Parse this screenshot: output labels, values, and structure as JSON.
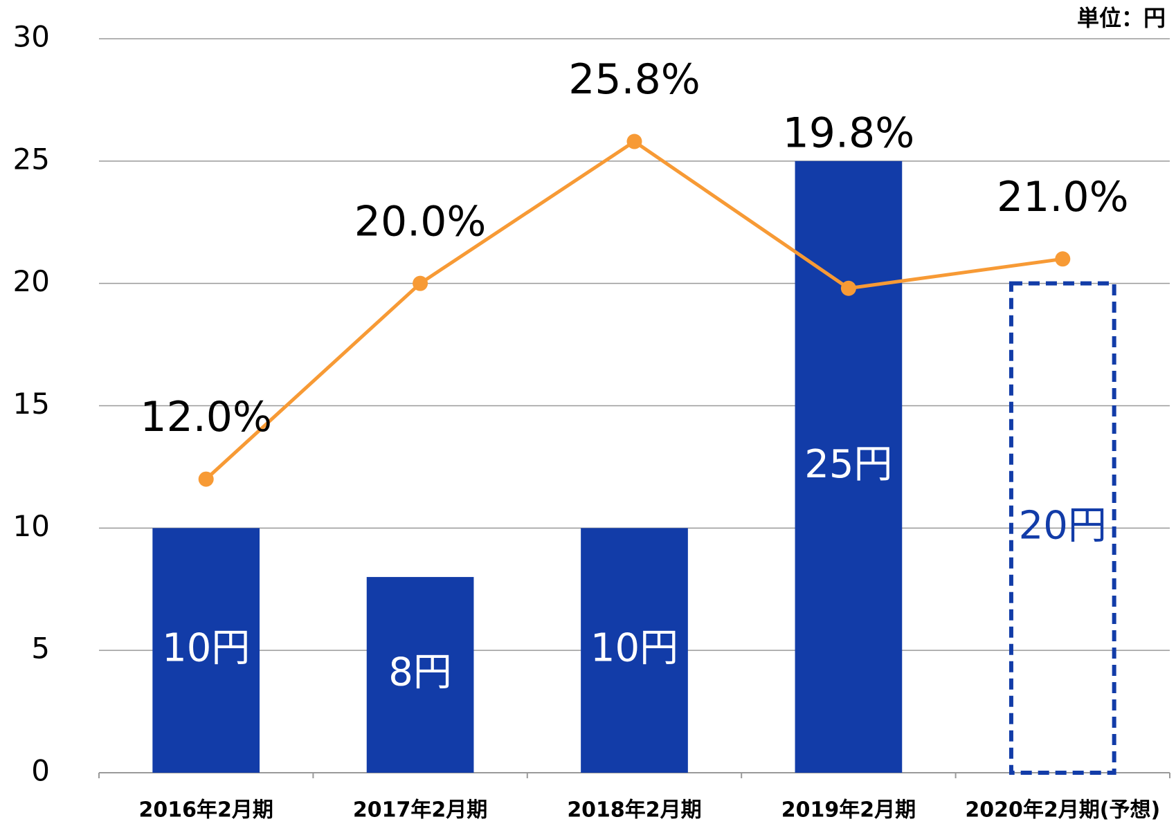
{
  "chart_data": {
    "type": "bar_line",
    "unit_label": "単位：円",
    "categories": [
      "2016年2月期",
      "2017年2月期",
      "2018年2月期",
      "2019年2月期",
      "2020年2月期(予想)"
    ],
    "series": [
      {
        "type": "bar",
        "color": "#123ca8",
        "values": [
          10,
          8,
          10,
          25,
          20
        ],
        "value_labels": [
          "10円",
          "8円",
          "10円",
          "25円",
          "20円"
        ],
        "styles": [
          "solid",
          "solid",
          "solid",
          "solid",
          "dashed"
        ]
      },
      {
        "type": "line",
        "color": "#f79a35",
        "values": [
          12.0,
          20.0,
          25.8,
          19.8,
          21.0
        ],
        "value_labels": [
          "12.0%",
          "20.0%",
          "25.8%",
          "19.8%",
          "21.0%"
        ]
      }
    ],
    "ylim": [
      0,
      30
    ],
    "yticks": [
      0,
      5,
      10,
      15,
      20,
      25,
      30
    ],
    "grid": true
  }
}
